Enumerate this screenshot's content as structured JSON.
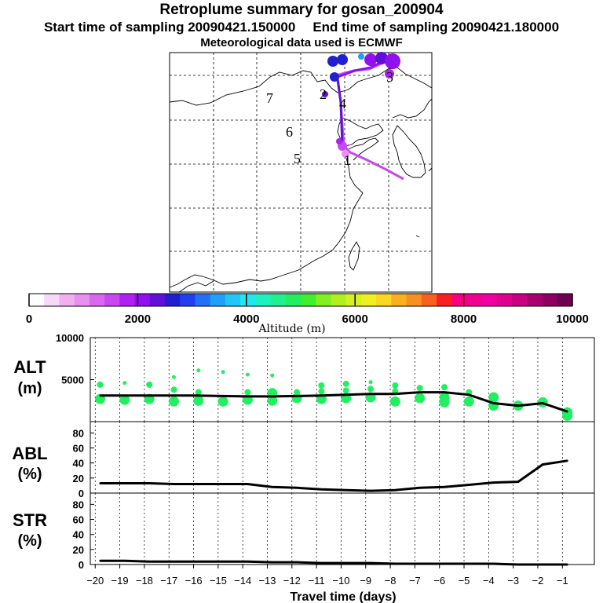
{
  "title": {
    "main": "Retroplume summary for gosan_200904",
    "start": "Start time of sampling 20090421.150000",
    "end": "End time of sampling 20090421.180000",
    "met": "Meteorological data used is ECMWF"
  },
  "map": {
    "day_labels": [
      "1",
      "2",
      "3",
      "4",
      "5",
      "6",
      "7"
    ]
  },
  "colorbar": {
    "label": "Altitude  (m)",
    "ticks": [
      "0",
      "2000",
      "4000",
      "6000",
      "8000",
      "10000"
    ],
    "colors": [
      "#ffffff",
      "#f8d8f8",
      "#f0b0f0",
      "#e890f0",
      "#d868f0",
      "#c848f0",
      "#b020f0",
      "#9010f0",
      "#6010d8",
      "#2020d0",
      "#2040f0",
      "#2070f8",
      "#20a0f8",
      "#20c8f8",
      "#20e8f0",
      "#20f0c0",
      "#20f090",
      "#20f060",
      "#40f030",
      "#80f020",
      "#b0f020",
      "#d8f020",
      "#f0f020",
      "#f8d820",
      "#f8b020",
      "#f89020",
      "#f86020",
      "#f82020",
      "#f80080",
      "#f00090",
      "#f000a0",
      "#e00090",
      "#c80080",
      "#a80070",
      "#8c0060",
      "#700050"
    ]
  },
  "x_axis": {
    "label": "Travel time (days)",
    "ticks": [
      -20,
      -19,
      -18,
      -17,
      -16,
      -15,
      -14,
      -13,
      -12,
      -11,
      -10,
      -9,
      -8,
      -7,
      -6,
      -5,
      -4,
      -3,
      -2,
      -1
    ],
    "range": [
      -20.2,
      0.3
    ]
  },
  "chart_data": [
    {
      "type": "line",
      "name": "ALT",
      "ylabel": "ALT",
      "yunit": "(m)",
      "ylim": [
        0,
        10000
      ],
      "yticks": [
        5000,
        10000
      ],
      "x": [
        -19.8,
        -18.8,
        -17.8,
        -16.8,
        -15.8,
        -14.8,
        -13.8,
        -12.8,
        -11.8,
        -10.8,
        -9.8,
        -8.8,
        -7.8,
        -6.8,
        -5.8,
        -4.8,
        -3.8,
        -2.8,
        -1.8,
        -0.8
      ],
      "values": [
        3100,
        3100,
        3100,
        3100,
        3100,
        3050,
        3000,
        3000,
        3050,
        3100,
        3200,
        3300,
        3300,
        3500,
        3500,
        3200,
        2200,
        1900,
        2200,
        1200
      ],
      "spread_points": [
        {
          "x": -19.8,
          "y": 2700
        },
        {
          "x": -19.8,
          "y": 4400
        },
        {
          "x": -18.8,
          "y": 2600
        },
        {
          "x": -18.8,
          "y": 4600
        },
        {
          "x": -17.8,
          "y": 2700
        },
        {
          "x": -17.8,
          "y": 4400
        },
        {
          "x": -16.8,
          "y": 2400
        },
        {
          "x": -16.8,
          "y": 3800
        },
        {
          "x": -16.8,
          "y": 5300
        },
        {
          "x": -15.8,
          "y": 2500
        },
        {
          "x": -15.8,
          "y": 3500
        },
        {
          "x": -15.8,
          "y": 6100
        },
        {
          "x": -14.8,
          "y": 2400
        },
        {
          "x": -14.8,
          "y": 5900
        },
        {
          "x": -13.8,
          "y": 2600
        },
        {
          "x": -13.8,
          "y": 3500
        },
        {
          "x": -13.8,
          "y": 5600
        },
        {
          "x": -12.8,
          "y": 2500
        },
        {
          "x": -12.8,
          "y": 3400
        },
        {
          "x": -12.8,
          "y": 5500
        },
        {
          "x": -11.8,
          "y": 2800
        },
        {
          "x": -11.8,
          "y": 3500
        },
        {
          "x": -10.8,
          "y": 2700
        },
        {
          "x": -10.8,
          "y": 3600
        },
        {
          "x": -10.8,
          "y": 4300
        },
        {
          "x": -9.8,
          "y": 2800
        },
        {
          "x": -9.8,
          "y": 3700
        },
        {
          "x": -9.8,
          "y": 4500
        },
        {
          "x": -8.8,
          "y": 2900
        },
        {
          "x": -8.8,
          "y": 3900
        },
        {
          "x": -8.8,
          "y": 4700
        },
        {
          "x": -7.8,
          "y": 2400
        },
        {
          "x": -7.8,
          "y": 3600
        },
        {
          "x": -7.8,
          "y": 4300
        },
        {
          "x": -6.8,
          "y": 2800
        },
        {
          "x": -6.8,
          "y": 4000
        },
        {
          "x": -5.8,
          "y": 2900
        },
        {
          "x": -5.8,
          "y": 4100
        },
        {
          "x": -5.8,
          "y": 2300
        },
        {
          "x": -4.8,
          "y": 2400
        },
        {
          "x": -4.8,
          "y": 3500
        },
        {
          "x": -3.8,
          "y": 1900
        },
        {
          "x": -3.8,
          "y": 2900
        },
        {
          "x": -2.8,
          "y": 1900
        },
        {
          "x": -1.8,
          "y": 2300
        },
        {
          "x": -0.8,
          "y": 1100
        },
        {
          "x": -0.8,
          "y": 700
        }
      ]
    },
    {
      "type": "line",
      "name": "ABL",
      "ylabel": "ABL",
      "yunit": "(%)",
      "ylim": [
        0,
        95
      ],
      "yticks": [
        0,
        20,
        40,
        60,
        80
      ],
      "x": [
        -19.8,
        -18.8,
        -17.8,
        -16.8,
        -15.8,
        -14.8,
        -13.8,
        -12.8,
        -11.8,
        -10.8,
        -9.8,
        -8.8,
        -7.8,
        -6.8,
        -5.8,
        -4.8,
        -3.8,
        -2.8,
        -1.8,
        -0.8
      ],
      "values": [
        13,
        13,
        13,
        12,
        12,
        12,
        12,
        8,
        7,
        5,
        4,
        3,
        4,
        7,
        8,
        11,
        14,
        15,
        38,
        43
      ]
    },
    {
      "type": "line",
      "name": "STR",
      "ylabel": "STR",
      "yunit": "(%)",
      "ylim": [
        0,
        95
      ],
      "yticks": [
        0,
        20,
        40,
        60,
        80
      ],
      "x": [
        -19.8,
        -18.8,
        -17.8,
        -16.8,
        -15.8,
        -14.8,
        -13.8,
        -12.8,
        -11.8,
        -10.8,
        -9.8,
        -8.8,
        -7.8,
        -6.8,
        -5.8,
        -4.8,
        -3.8,
        -2.8,
        -1.8,
        -0.8
      ],
      "values": [
        5,
        5,
        4,
        4,
        4,
        4,
        4,
        3,
        3,
        2,
        2,
        2,
        1,
        1,
        1,
        1,
        1,
        0,
        0,
        0
      ]
    }
  ]
}
